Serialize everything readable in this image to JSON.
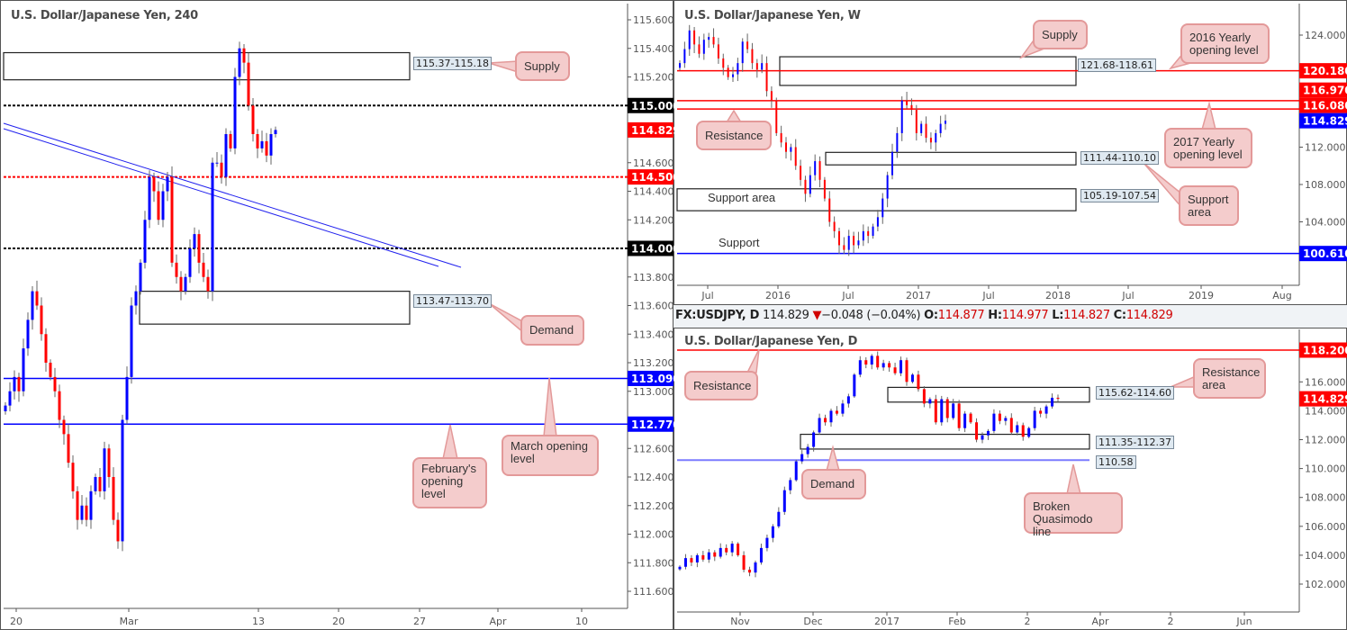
{
  "header": {
    "symbol": "FX:USDJPY, D",
    "last": "114.829",
    "direction_icon": "triangle-down-icon",
    "change": "−0.048 (−0.04%)",
    "open_label": "O:",
    "open": "114.877",
    "high_label": "H:",
    "high": "114.977",
    "low_label": "L:",
    "low": "114.827",
    "close_label": "C:",
    "close": "114.829"
  },
  "colors": {
    "bull": "#0000ff",
    "bear": "#ff0000",
    "callout_fill": "#f4cccc",
    "callout_border": "#e39999",
    "level_red": "#ff0000",
    "level_blue": "#0000ff"
  },
  "chart_data": [
    {
      "type": "candlestick",
      "title": "U.S. Dollar/Japanese Yen, 240",
      "y_ticks": [
        "115.600",
        "115.400",
        "115.200",
        "114.600",
        "114.400",
        "114.200",
        "113.800",
        "113.600",
        "113.400",
        "113.200",
        "113.000",
        "112.600",
        "112.400",
        "112.200",
        "112.000",
        "111.800",
        "111.600"
      ],
      "y_tick_values": [
        115.6,
        115.4,
        115.2,
        114.6,
        114.4,
        114.2,
        113.8,
        113.6,
        113.4,
        113.2,
        113.0,
        112.6,
        112.4,
        112.2,
        112.0,
        111.8,
        111.6
      ],
      "ylim": [
        111.45,
        115.75
      ],
      "x_ticks": [
        "20",
        "Mar",
        "13",
        "20",
        "27",
        "Apr",
        "10"
      ],
      "levels": [
        {
          "price": 115.0,
          "tag": "115.000",
          "color": "#000000",
          "style": "dotted"
        },
        {
          "price": 114.829,
          "tag": "114.829",
          "color": "#ff0000",
          "style": "none"
        },
        {
          "price": 114.5,
          "tag": "114.500",
          "color": "#ff0000",
          "style": "dotted"
        },
        {
          "price": 114.0,
          "tag": "114.000",
          "color": "#000000",
          "style": "dotted"
        },
        {
          "price": 113.09,
          "tag": "113.090",
          "color": "#0000ff",
          "style": "solid"
        },
        {
          "price": 112.77,
          "tag": "112.770",
          "color": "#0000ff",
          "style": "solid"
        }
      ],
      "zones": [
        {
          "top": 115.37,
          "bottom": 115.18,
          "label": "115.37-115.18"
        },
        {
          "top": 113.7,
          "bottom": 113.47,
          "label": "113.47-113.70"
        }
      ],
      "callouts": [
        "Supply",
        "Demand",
        "February's opening level",
        "March opening level"
      ],
      "closes": [
        112.9,
        113.0,
        113.1,
        113.0,
        113.3,
        113.5,
        113.7,
        113.6,
        113.4,
        113.2,
        113.1,
        113.0,
        112.8,
        112.7,
        112.5,
        112.3,
        112.1,
        112.2,
        112.1,
        112.3,
        112.4,
        112.3,
        112.6,
        112.4,
        112.1,
        111.95,
        112.8,
        113.1,
        113.6,
        113.7,
        113.9,
        114.2,
        114.5,
        114.4,
        114.2,
        114.4,
        114.5,
        113.9,
        113.8,
        113.7,
        113.8,
        114.0,
        114.1,
        113.9,
        113.8,
        113.7,
        114.6,
        114.6,
        114.5,
        114.8,
        114.7,
        115.2,
        115.4,
        115.3,
        115.0,
        114.8,
        114.7,
        114.75,
        114.65,
        114.8,
        114.829
      ]
    },
    {
      "type": "candlestick",
      "title": "U.S. Dollar/Japanese Yen, W",
      "y_ticks": [
        "124.000",
        "112.000",
        "108.000",
        "104.000"
      ],
      "y_tick_values": [
        124,
        112,
        108,
        104
      ],
      "ylim": [
        97.3,
        127.5
      ],
      "x_ticks": [
        "Jul",
        "2016",
        "Jul",
        "2017",
        "Jul",
        "2018",
        "Jul",
        "2019",
        "Aug"
      ],
      "levels": [
        {
          "price": 120.18,
          "tag": "120.180",
          "color": "#ff0000",
          "style": "solid"
        },
        {
          "price": 116.97,
          "tag": "116.970",
          "color": "#ff0000",
          "style": "solid"
        },
        {
          "price": 116.08,
          "tag": "116.080",
          "color": "#ff0000",
          "style": "solid"
        },
        {
          "price": 114.829,
          "tag": "114.829",
          "color": "#0000ff",
          "style": "none"
        },
        {
          "price": 100.61,
          "tag": "100.610",
          "color": "#0000ff",
          "style": "solid"
        }
      ],
      "zones": [
        {
          "top": 121.68,
          "bottom": 118.61,
          "label": "121.68-118.61"
        },
        {
          "top": 111.44,
          "bottom": 110.1,
          "label": "111.44-110.10"
        },
        {
          "top": 107.54,
          "bottom": 105.19,
          "label": "105.19-107.54"
        }
      ],
      "text_labels": [
        "Support area",
        "Support"
      ],
      "callouts": [
        "Supply",
        "2016 Yearly opening level",
        "Resistance",
        "2017 Yearly opening level",
        "Support area"
      ],
      "closes": [
        121.0,
        122.5,
        124.5,
        123.0,
        122.0,
        123.5,
        123.8,
        123.0,
        121.5,
        120.5,
        119.5,
        119.8,
        121.0,
        123.3,
        122.5,
        121.0,
        120.3,
        121.0,
        118.0,
        117.0,
        113.5,
        112.5,
        111.5,
        112.0,
        110.0,
        108.5,
        107.0,
        109.0,
        110.5,
        108.5,
        106.5,
        104.0,
        103.0,
        101.5,
        101.0,
        102.5,
        101.5,
        102.0,
        103.0,
        102.5,
        103.5,
        104.5,
        106.5,
        109.0,
        111.5,
        113.5,
        117.0,
        116.5,
        116.0,
        113.5,
        114.5,
        113.0,
        112.5,
        113.5,
        114.5,
        114.829
      ]
    },
    {
      "type": "candlestick",
      "title": "U.S. Dollar/Japanese Yen, D",
      "y_ticks": [
        "116.000",
        "112.000",
        "110.000",
        "108.000",
        "106.000",
        "104.000",
        "102.000"
      ],
      "y_tick_values": [
        116,
        112,
        110,
        108,
        106,
        104,
        102
      ],
      "ylim": [
        100.6,
        119.6
      ],
      "x_ticks": [
        "Nov",
        "Dec",
        "2017",
        "Feb",
        "2",
        "Apr",
        "2",
        "Jun"
      ],
      "levels": [
        {
          "price": 118.2,
          "tag": "118.200",
          "color": "#ff0000",
          "style": "solid"
        },
        {
          "price": 114.829,
          "tag": "114.829",
          "color": "#ff0000",
          "style": "none"
        },
        {
          "price": 114.0,
          "tag": "114.000",
          "color": "#333333",
          "style": "tick"
        }
      ],
      "zones": [
        {
          "top": 115.62,
          "bottom": 114.6,
          "label": "115.62-114.60"
        },
        {
          "top": 112.37,
          "bottom": 111.35,
          "label": "111.35-112.37"
        }
      ],
      "line_labels": [
        {
          "price": 110.58,
          "label": "110.58",
          "color": "#7b7bff"
        }
      ],
      "callouts": [
        "Resistance",
        "Resistance area",
        "Demand",
        "Broken Quasimodo line"
      ],
      "closes": [
        103.2,
        103.8,
        103.5,
        104.0,
        103.7,
        104.2,
        103.9,
        104.5,
        104.2,
        104.8,
        104.0,
        103.0,
        102.8,
        103.5,
        104.5,
        105.2,
        106.0,
        107.0,
        108.5,
        109.2,
        110.5,
        111.0,
        111.5,
        112.5,
        113.5,
        113.2,
        114.0,
        113.8,
        114.5,
        115.0,
        116.5,
        117.5,
        117.2,
        117.8,
        117.0,
        117.3,
        117.0,
        116.6,
        117.5,
        116.0,
        116.5,
        115.5,
        114.5,
        114.8,
        113.2,
        114.8,
        113.5,
        114.5,
        112.8,
        113.8,
        113.2,
        112.0,
        112.3,
        112.6,
        113.8,
        113.3,
        113.5,
        112.5,
        113.0,
        112.2,
        112.8,
        114.0,
        113.8,
        114.3,
        114.9,
        114.829
      ]
    }
  ]
}
